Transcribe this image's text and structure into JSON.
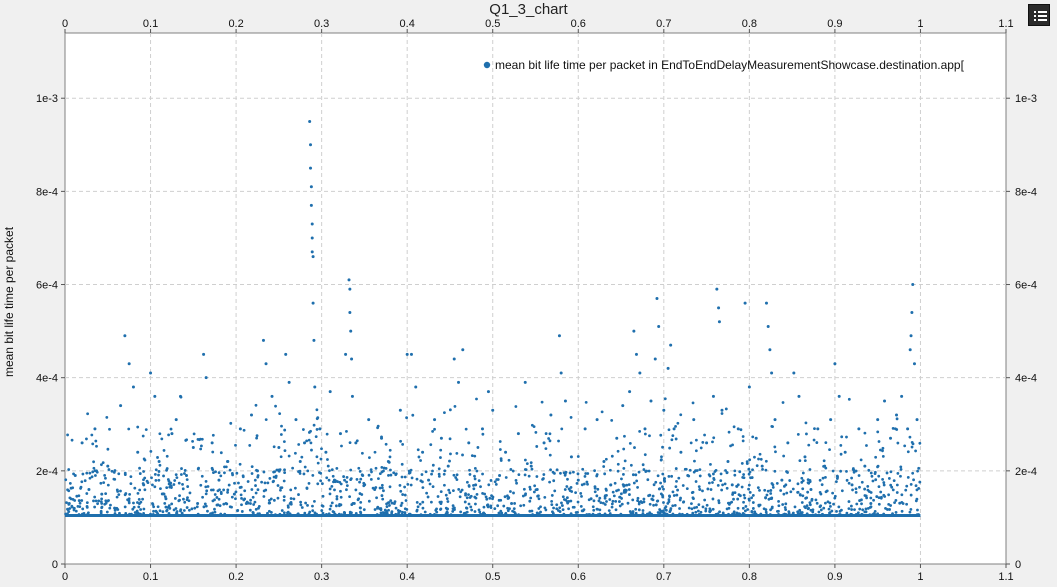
{
  "window": {
    "menu_icon": "list-icon"
  },
  "chart_data": {
    "type": "scatter",
    "title": "Q1_3_chart",
    "xlabel": "",
    "ylabel": "mean bit life time per packet",
    "xlim": [
      0,
      1.1
    ],
    "ylim": [
      0,
      0.00114
    ],
    "x_ticks": [
      "0",
      "0.1",
      "0.2",
      "0.3",
      "0.4",
      "0.5",
      "0.6",
      "0.7",
      "0.8",
      "0.9",
      "1",
      "1.1"
    ],
    "y_ticks": [
      "0",
      "2e-4",
      "4e-4",
      "6e-4",
      "8e-4",
      "1e-3"
    ],
    "grid": true,
    "legend_position": "top-right",
    "color": "#1f6fad",
    "series": [
      {
        "name": "mean bit life time per packet in EndToEndDelayMeasurementShowcase.destination.app[",
        "baseline": 0.000104,
        "x_range": [
          0,
          1.0
        ],
        "points": [
          [
            0.005,
            0.00013
          ],
          [
            0.012,
            0.00019
          ],
          [
            0.02,
            0.00026
          ],
          [
            0.028,
            0.00016
          ],
          [
            0.035,
            0.00029
          ],
          [
            0.043,
            0.00015
          ],
          [
            0.05,
            0.00021
          ],
          [
            0.058,
            0.00012
          ],
          [
            0.065,
            0.00034
          ],
          [
            0.07,
            0.00049
          ],
          [
            0.075,
            0.00043
          ],
          [
            0.08,
            0.00038
          ],
          [
            0.085,
            0.00024
          ],
          [
            0.092,
            0.00017
          ],
          [
            0.1,
            0.00041
          ],
          [
            0.105,
            0.00036
          ],
          [
            0.11,
            0.00022
          ],
          [
            0.118,
            0.00014
          ],
          [
            0.125,
            0.00028
          ],
          [
            0.13,
            0.00031
          ],
          [
            0.135,
            0.00036
          ],
          [
            0.142,
            0.00019
          ],
          [
            0.15,
            0.00025
          ],
          [
            0.155,
            0.00013
          ],
          [
            0.162,
            0.00045
          ],
          [
            0.165,
            0.0004
          ],
          [
            0.172,
            0.00026
          ],
          [
            0.18,
            0.00018
          ],
          [
            0.19,
            0.00022
          ],
          [
            0.198,
            0.00015
          ],
          [
            0.205,
            0.00029
          ],
          [
            0.212,
            0.00013
          ],
          [
            0.218,
            0.00032
          ],
          [
            0.225,
            0.0002
          ],
          [
            0.232,
            0.00048
          ],
          [
            0.235,
            0.00043
          ],
          [
            0.242,
            0.00036
          ],
          [
            0.25,
            0.00025
          ],
          [
            0.258,
            0.00045
          ],
          [
            0.262,
            0.00039
          ],
          [
            0.27,
            0.00031
          ],
          [
            0.275,
            0.00022
          ],
          [
            0.28,
            0.00026
          ],
          [
            0.286,
            0.00095
          ],
          [
            0.287,
            0.0009
          ],
          [
            0.287,
            0.00085
          ],
          [
            0.288,
            0.00081
          ],
          [
            0.288,
            0.00077
          ],
          [
            0.289,
            0.00073
          ],
          [
            0.289,
            0.0007
          ],
          [
            0.289,
            0.00067
          ],
          [
            0.29,
            0.00066
          ],
          [
            0.29,
            0.00056
          ],
          [
            0.291,
            0.00048
          ],
          [
            0.292,
            0.00038
          ],
          [
            0.298,
            0.00029
          ],
          [
            0.305,
            0.00024
          ],
          [
            0.31,
            0.00037
          ],
          [
            0.315,
            0.00018
          ],
          [
            0.322,
            0.00028
          ],
          [
            0.328,
            0.00045
          ],
          [
            0.332,
            0.00061
          ],
          [
            0.333,
            0.00059
          ],
          [
            0.333,
            0.00054
          ],
          [
            0.334,
            0.0005
          ],
          [
            0.335,
            0.00044
          ],
          [
            0.336,
            0.00036
          ],
          [
            0.34,
            0.00026
          ],
          [
            0.348,
            0.00019
          ],
          [
            0.355,
            0.00031
          ],
          [
            0.362,
            0.00016
          ],
          [
            0.37,
            0.00027
          ],
          [
            0.378,
            0.00022
          ],
          [
            0.385,
            0.00013
          ],
          [
            0.392,
            0.00033
          ],
          [
            0.4,
            0.00045
          ],
          [
            0.405,
            0.00045
          ],
          [
            0.41,
            0.00038
          ],
          [
            0.418,
            0.00024
          ],
          [
            0.425,
            0.00018
          ],
          [
            0.432,
            0.00031
          ],
          [
            0.44,
            0.00027
          ],
          [
            0.448,
            0.00021
          ],
          [
            0.455,
            0.00044
          ],
          [
            0.46,
            0.00039
          ],
          [
            0.465,
            0.00046
          ],
          [
            0.472,
            0.00026
          ],
          [
            0.48,
            0.00017
          ],
          [
            0.488,
            0.00029
          ],
          [
            0.495,
            0.00037
          ],
          [
            0.5,
            0.00033
          ],
          [
            0.508,
            0.00019
          ],
          [
            0.515,
            0.00024
          ],
          [
            0.522,
            0.00013
          ],
          [
            0.53,
            0.00028
          ],
          [
            0.538,
            0.00039
          ],
          [
            0.545,
            0.00021
          ],
          [
            0.552,
            0.00016
          ],
          [
            0.56,
            0.00026
          ],
          [
            0.568,
            0.00032
          ],
          [
            0.578,
            0.00049
          ],
          [
            0.58,
            0.00041
          ],
          [
            0.585,
            0.00035
          ],
          [
            0.592,
            0.00023
          ],
          [
            0.6,
            0.00018
          ],
          [
            0.608,
            0.00029
          ],
          [
            0.615,
            0.00014
          ],
          [
            0.622,
            0.00031
          ],
          [
            0.63,
            0.00022
          ],
          [
            0.638,
            0.00017
          ],
          [
            0.645,
            0.00027
          ],
          [
            0.652,
            0.00034
          ],
          [
            0.66,
            0.00037
          ],
          [
            0.665,
            0.0005
          ],
          [
            0.668,
            0.00045
          ],
          [
            0.672,
            0.00041
          ],
          [
            0.678,
            0.00029
          ],
          [
            0.685,
            0.00035
          ],
          [
            0.69,
            0.00044
          ],
          [
            0.692,
            0.00057
          ],
          [
            0.694,
            0.00051
          ],
          [
            0.7,
            0.00033
          ],
          [
            0.705,
            0.00042
          ],
          [
            0.708,
            0.00047
          ],
          [
            0.712,
            0.00029
          ],
          [
            0.72,
            0.00024
          ],
          [
            0.728,
            0.00019
          ],
          [
            0.735,
            0.00031
          ],
          [
            0.742,
            0.00016
          ],
          [
            0.75,
            0.00026
          ],
          [
            0.758,
            0.00036
          ],
          [
            0.762,
            0.00059
          ],
          [
            0.764,
            0.00055
          ],
          [
            0.765,
            0.00052
          ],
          [
            0.768,
            0.00033
          ],
          [
            0.775,
            0.00022
          ],
          [
            0.78,
            0.00017
          ],
          [
            0.787,
            0.00029
          ],
          [
            0.795,
            0.00056
          ],
          [
            0.8,
            0.00038
          ],
          [
            0.808,
            0.00027
          ],
          [
            0.815,
            0.00021
          ],
          [
            0.82,
            0.00056
          ],
          [
            0.822,
            0.00051
          ],
          [
            0.824,
            0.00046
          ],
          [
            0.826,
            0.00041
          ],
          [
            0.83,
            0.00031
          ],
          [
            0.838,
            0.00018
          ],
          [
            0.845,
            0.00026
          ],
          [
            0.852,
            0.00041
          ],
          [
            0.858,
            0.00036
          ],
          [
            0.865,
            0.00023
          ],
          [
            0.872,
            0.00016
          ],
          [
            0.88,
            0.00029
          ],
          [
            0.888,
            0.00021
          ],
          [
            0.895,
            0.00031
          ],
          [
            0.9,
            0.00043
          ],
          [
            0.905,
            0.00036
          ],
          [
            0.912,
            0.00024
          ],
          [
            0.92,
            0.00017
          ],
          [
            0.928,
            0.00029
          ],
          [
            0.935,
            0.00021
          ],
          [
            0.942,
            0.00013
          ],
          [
            0.95,
            0.00031
          ],
          [
            0.958,
            0.00035
          ],
          [
            0.965,
            0.00027
          ],
          [
            0.972,
            0.00032
          ],
          [
            0.978,
            0.00036
          ],
          [
            0.985,
            0.00029
          ],
          [
            0.988,
            0.00046
          ],
          [
            0.989,
            0.00049
          ],
          [
            0.99,
            0.00054
          ],
          [
            0.991,
            0.0006
          ],
          [
            0.993,
            0.00043
          ],
          [
            0.996,
            0.00031
          ]
        ]
      }
    ]
  }
}
